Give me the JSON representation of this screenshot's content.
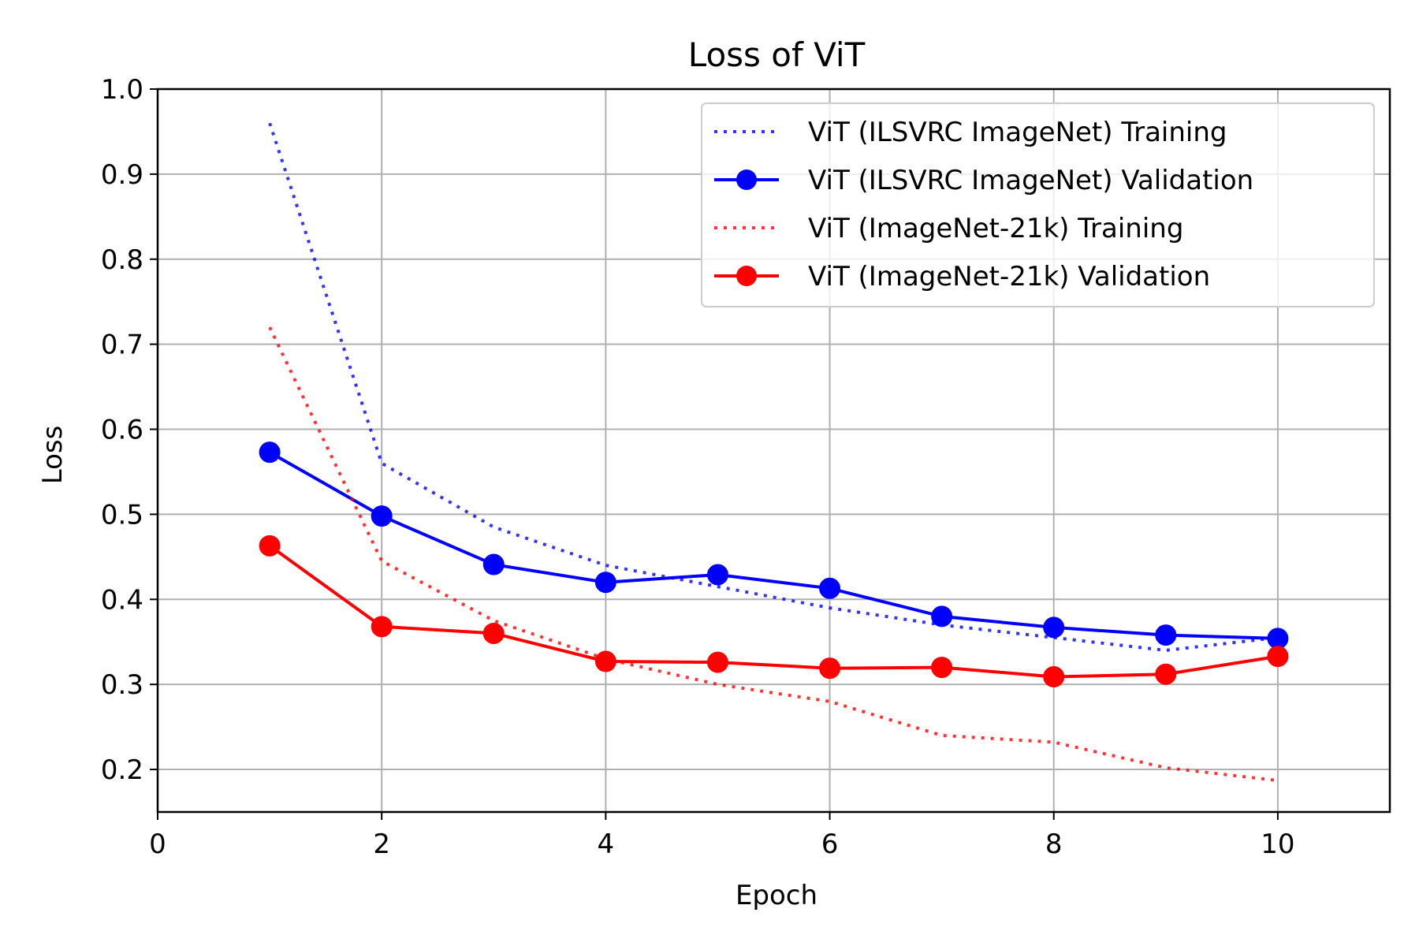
{
  "chart_data": {
    "type": "line",
    "title": "Loss of ViT",
    "xlabel": "Epoch",
    "ylabel": "Loss",
    "xlim": [
      0,
      11
    ],
    "ylim": [
      0.15,
      1.0
    ],
    "xticks": [
      0,
      2,
      4,
      6,
      8,
      10
    ],
    "xtick_labels": [
      "0",
      "2",
      "4",
      "6",
      "8",
      "10"
    ],
    "yticks": [
      0.2,
      0.3,
      0.4,
      0.5,
      0.6,
      0.7,
      0.8,
      0.9,
      1.0
    ],
    "ytick_labels": [
      "0.2",
      "0.3",
      "0.4",
      "0.5",
      "0.6",
      "0.7",
      "0.8",
      "0.9",
      "1.0"
    ],
    "grid": true,
    "legend_position": "top-right",
    "x": [
      1,
      2,
      3,
      4,
      5,
      6,
      7,
      8,
      9,
      10
    ],
    "series": [
      {
        "name": "ViT (ILSVRC ImageNet) Training",
        "color": "#0000ff",
        "style": "dotted",
        "markers": false,
        "values": [
          0.96,
          0.56,
          0.485,
          0.44,
          0.415,
          0.39,
          0.37,
          0.355,
          0.34,
          0.355
        ]
      },
      {
        "name": "ViT (ILSVRC ImageNet) Validation",
        "color": "#0000ff",
        "style": "solid",
        "markers": true,
        "values": [
          0.573,
          0.498,
          0.441,
          0.42,
          0.429,
          0.413,
          0.38,
          0.367,
          0.358,
          0.354
        ]
      },
      {
        "name": "ViT (ImageNet-21k) Training",
        "color": "#ff0000",
        "style": "dotted",
        "markers": false,
        "values": [
          0.72,
          0.445,
          0.375,
          0.33,
          0.3,
          0.28,
          0.24,
          0.232,
          0.202,
          0.187
        ]
      },
      {
        "name": "ViT (ImageNet-21k) Validation",
        "color": "#ff0000",
        "style": "solid",
        "markers": true,
        "values": [
          0.463,
          0.368,
          0.36,
          0.327,
          0.326,
          0.319,
          0.32,
          0.309,
          0.312,
          0.333
        ]
      }
    ]
  }
}
